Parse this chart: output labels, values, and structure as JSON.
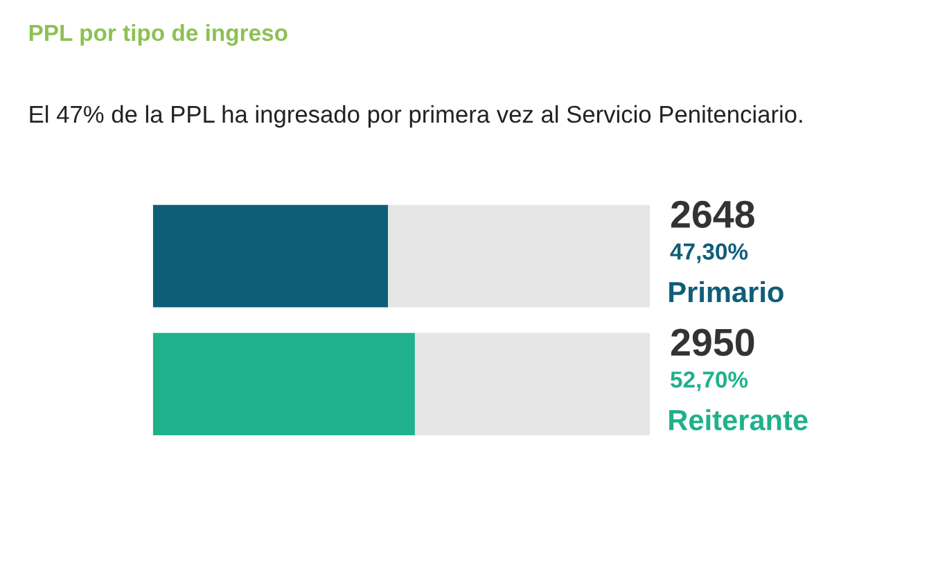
{
  "chart_data": {
    "type": "bar",
    "orientation": "horizontal",
    "stacked": true,
    "title": "PPL por tipo de ingreso",
    "subtitle": "El 47% de la PPL ha ingresado por primera vez al Servicio Penitenciario.",
    "categories": [
      "Primario",
      "Reiterante"
    ],
    "series": [
      {
        "colors": [
          "#0f5e78",
          "#1fb08c"
        ],
        "values": [
          47.3,
          52.7
        ],
        "value_labels": [
          "47,30%",
          "52,70%"
        ]
      },
      {
        "colors": [
          "#e6e6e6",
          "#e6e6e6"
        ],
        "values": [
          52.7,
          47.3
        ]
      }
    ],
    "annotations": [
      "2648",
      "2950"
    ],
    "xlim": [
      0,
      100
    ],
    "tick_labels": "y",
    "grid": false,
    "legend": false
  }
}
